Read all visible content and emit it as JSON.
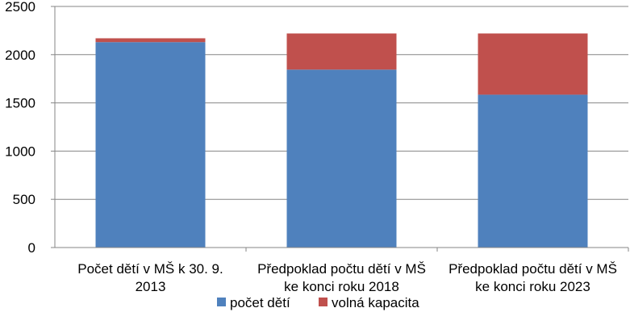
{
  "chart_data": {
    "type": "bar",
    "stacked": true,
    "categories": [
      [
        "Počet dětí v MŠ k 30. 9.",
        "2013"
      ],
      [
        "Předpoklad počtu dětí v MŠ",
        "ke konci roku 2018"
      ],
      [
        "Předpoklad počtu dětí v MŠ",
        "ke konci roku 2023"
      ]
    ],
    "series": [
      {
        "name": "počet dětí",
        "color": "#4F81BD",
        "values": [
          2130,
          1845,
          1585
        ]
      },
      {
        "name": "volná kapacita",
        "color": "#C0504D",
        "values": [
          40,
          375,
          635
        ]
      }
    ],
    "ylim": [
      0,
      2500
    ],
    "yticks": [
      "0",
      "500",
      "1000",
      "1500",
      "2000",
      "2500"
    ],
    "grid": true,
    "legend_position": "bottom"
  }
}
